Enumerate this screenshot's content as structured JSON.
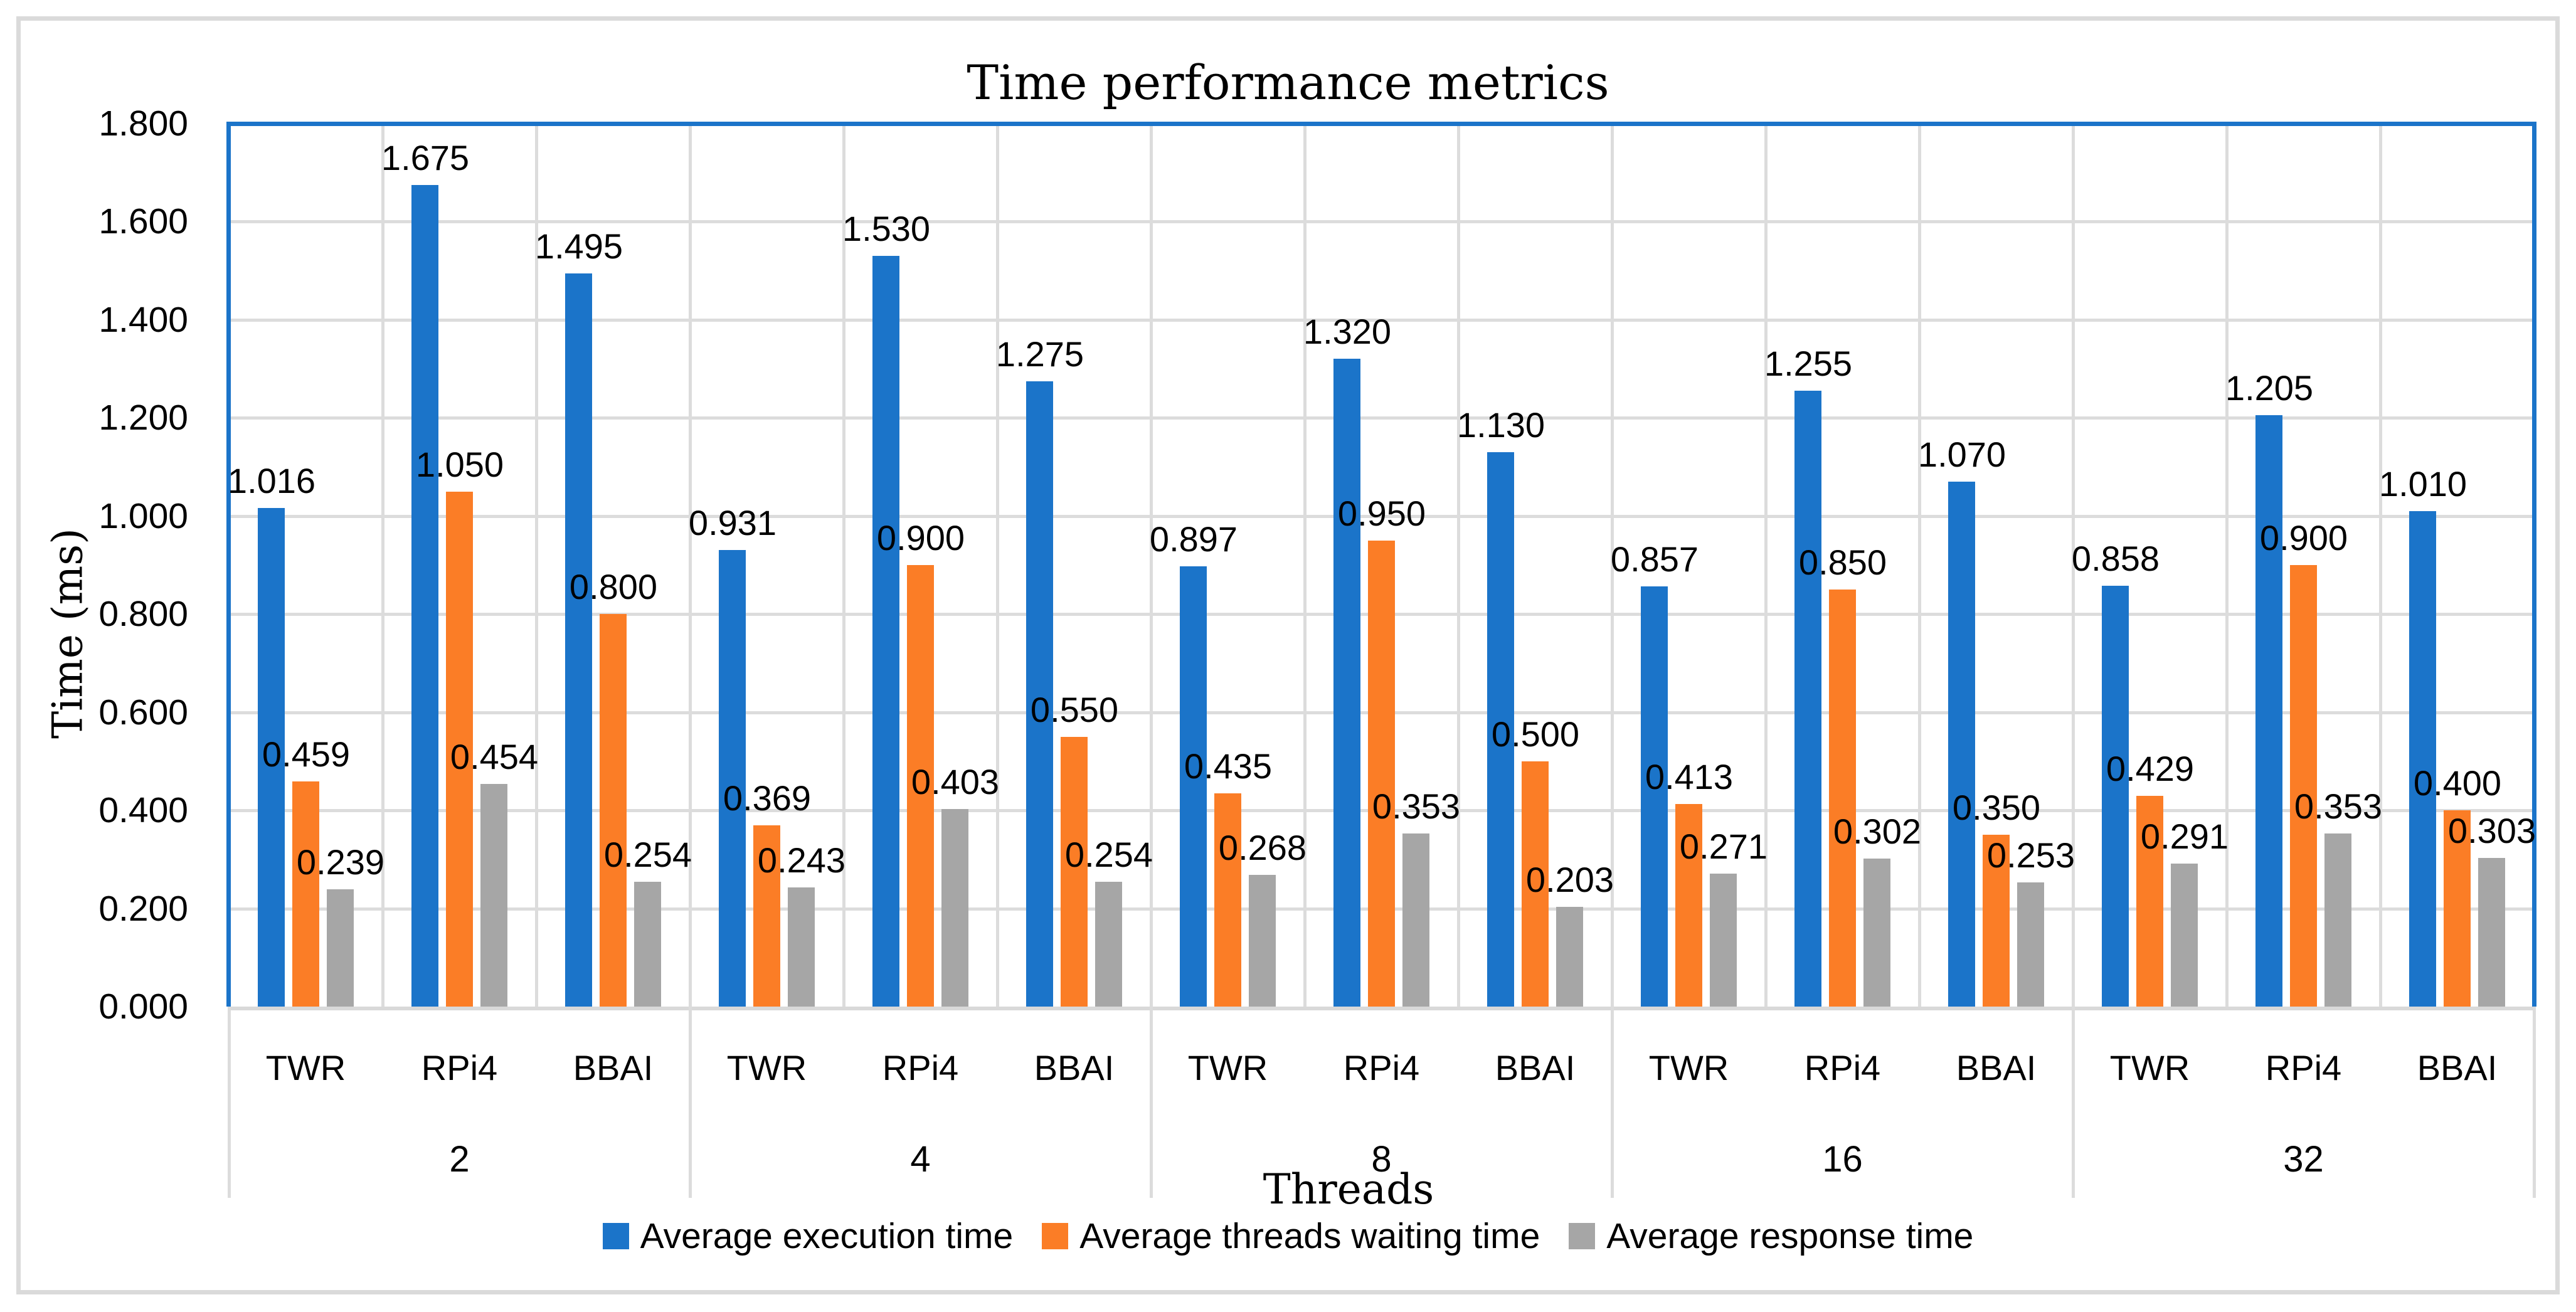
{
  "figure": {
    "title": "Time performance metrics",
    "xlabel": "Threads",
    "ylabel": "Time (ms)"
  },
  "chart_data": {
    "type": "bar",
    "title": "Time performance metrics",
    "xlabel": "Threads",
    "ylabel": "Time (ms)",
    "ylim": [
      0,
      1.8
    ],
    "ytick_step": 0.2,
    "ytick_labels": [
      "0.000",
      "0.200",
      "0.400",
      "0.600",
      "0.800",
      "1.000",
      "1.200",
      "1.400",
      "1.600",
      "1.800"
    ],
    "value_decimals": 3,
    "grid": true,
    "legend_position": "bottom",
    "groups": [
      "2",
      "4",
      "8",
      "16",
      "32"
    ],
    "categories": [
      "TWR",
      "RPi4",
      "BBAI"
    ],
    "series": [
      {
        "name": "Average execution time",
        "color": "#1B74C9",
        "values": [
          1.016,
          1.675,
          1.495,
          0.931,
          1.53,
          1.275,
          0.897,
          1.32,
          1.13,
          0.857,
          1.255,
          1.07,
          0.858,
          1.205,
          1.01
        ]
      },
      {
        "name": "Average threads waiting time",
        "color": "#FB7D26",
        "values": [
          0.459,
          1.05,
          0.8,
          0.369,
          0.9,
          0.55,
          0.435,
          0.95,
          0.5,
          0.413,
          0.85,
          0.35,
          0.429,
          0.9,
          0.4
        ]
      },
      {
        "name": "Average response time",
        "color": "#A6A6A6",
        "values": [
          0.239,
          0.454,
          0.254,
          0.243,
          0.403,
          0.254,
          0.268,
          0.353,
          0.203,
          0.271,
          0.302,
          0.253,
          0.291,
          0.353,
          0.303
        ]
      }
    ],
    "colors": {
      "gridline": "#DCDCDC",
      "axis_line": "#D9D9D9",
      "plot_border": "#1B74C9",
      "figure_border": "#DADADA",
      "text": "#000000"
    }
  }
}
